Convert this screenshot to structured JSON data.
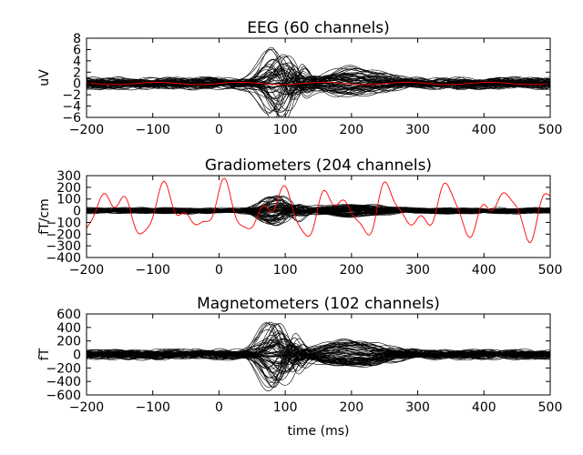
{
  "chart_data": [
    {
      "type": "line",
      "title": "EEG (60 channels)",
      "ylabel": "uV",
      "xlabel": "",
      "xlim": [
        -200,
        500
      ],
      "ylim": [
        -6,
        8
      ],
      "xticks": [
        -200,
        -100,
        0,
        100,
        200,
        300,
        400,
        500
      ],
      "xtick_labels": [
        "−200",
        "−100",
        "0",
        "100",
        "200",
        "300",
        "400",
        "500"
      ],
      "yticks": [
        -6,
        -4,
        -2,
        0,
        2,
        4,
        6,
        8
      ],
      "ytick_labels": [
        "−6",
        "−4",
        "−2",
        "0",
        "2",
        "4",
        "6",
        "8"
      ],
      "n_channels": 60,
      "evoked_peak": {
        "time": 90,
        "amplitude": 6.5
      },
      "noise_amplitude": 1.2,
      "highlight_channel": {
        "color": "#ff0000",
        "amplitude": 0.2
      },
      "grid": false
    },
    {
      "type": "line",
      "title": "Gradiometers (204 channels)",
      "ylabel": "fT/cm",
      "xlabel": "",
      "xlim": [
        -200,
        500
      ],
      "ylim": [
        -400,
        300
      ],
      "xticks": [
        -200,
        -100,
        0,
        100,
        200,
        300,
        400,
        500
      ],
      "xtick_labels": [
        "−200",
        "−100",
        "0",
        "100",
        "200",
        "300",
        "400",
        "500"
      ],
      "yticks": [
        -400,
        -300,
        -200,
        -100,
        0,
        100,
        200,
        300
      ],
      "ytick_labels": [
        "−400",
        "−300",
        "−200",
        "−100",
        "0",
        "100",
        "200",
        "300"
      ],
      "n_channels": 204,
      "evoked_peak": {
        "time": 85,
        "amplitude": 130
      },
      "noise_amplitude": 30,
      "highlight_channel": {
        "color": "#ff0000",
        "amplitude": 280
      },
      "grid": false
    },
    {
      "type": "line",
      "title": "Magnetometers (102 channels)",
      "ylabel": "fT",
      "xlabel": "time (ms)",
      "xlim": [
        -200,
        500
      ],
      "ylim": [
        -600,
        600
      ],
      "xticks": [
        -200,
        -100,
        0,
        100,
        200,
        300,
        400,
        500
      ],
      "xtick_labels": [
        "−200",
        "−100",
        "0",
        "100",
        "200",
        "300",
        "400",
        "500"
      ],
      "yticks": [
        -600,
        -400,
        -200,
        0,
        200,
        400,
        600
      ],
      "ytick_labels": [
        "−600",
        "−400",
        "−200",
        "0",
        "200",
        "400",
        "600"
      ],
      "n_channels": 102,
      "evoked_peak": {
        "time": 85,
        "amplitude": 520
      },
      "noise_amplitude": 90,
      "highlight_channel": null,
      "grid": false
    }
  ]
}
